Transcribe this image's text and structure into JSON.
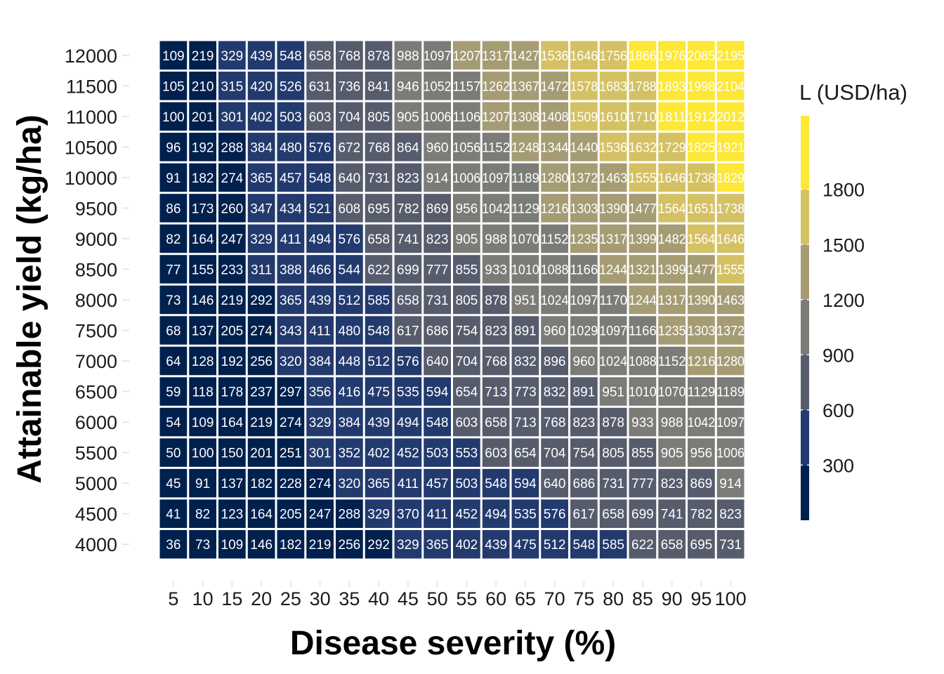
{
  "chart_data": {
    "type": "heatmap",
    "xlabel": "Disease severity (%)",
    "ylabel": "Attainable yield (kg/ha)",
    "x": [
      5,
      10,
      15,
      20,
      25,
      30,
      35,
      40,
      45,
      50,
      55,
      60,
      65,
      70,
      75,
      80,
      85,
      90,
      95,
      100
    ],
    "y": [
      4000,
      4500,
      5000,
      5500,
      6000,
      6500,
      7000,
      7500,
      8000,
      8500,
      9000,
      9500,
      10000,
      10500,
      11000,
      11500,
      12000
    ],
    "x_tick_labels": [
      "5",
      "10",
      "15",
      "20",
      "25",
      "30",
      "35",
      "40",
      "45",
      "50",
      "55",
      "60",
      "65",
      "70",
      "75",
      "80",
      "85",
      "90",
      "95",
      "100"
    ],
    "y_tick_labels": [
      "4000",
      "4500",
      "5000",
      "5500",
      "6000",
      "6500",
      "7000",
      "7500",
      "8000",
      "8500",
      "9000",
      "9500",
      "10000",
      "10500",
      "11000",
      "11500",
      "12000"
    ],
    "cell_labels": [
      [
        "36",
        "73",
        "109",
        "146",
        "182",
        "219",
        "256",
        "292",
        "329",
        "365",
        "402",
        "439",
        "475",
        "512",
        "548",
        "585",
        "622",
        "658",
        "695",
        "731"
      ],
      [
        "41",
        "82",
        "123",
        "164",
        "205",
        "247",
        "288",
        "329",
        "370",
        "411",
        "452",
        "494",
        "535",
        "576",
        "617",
        "658",
        "699",
        "741",
        "782",
        "823"
      ],
      [
        "45",
        "91",
        "137",
        "182",
        "228",
        "274",
        "320",
        "365",
        "411",
        "457",
        "503",
        "548",
        "594",
        "640",
        "686",
        "731",
        "777",
        "823",
        "869",
        "914"
      ],
      [
        "50",
        "100",
        "150",
        "201",
        "251",
        "301",
        "352",
        "402",
        "452",
        "503",
        "553",
        "603",
        "654",
        "704",
        "754",
        "805",
        "855",
        "905",
        "956",
        "1006"
      ],
      [
        "54",
        "109",
        "164",
        "219",
        "274",
        "329",
        "384",
        "439",
        "494",
        "548",
        "603",
        "658",
        "713",
        "768",
        "823",
        "878",
        "933",
        "988",
        "1042",
        "1097"
      ],
      [
        "59",
        "118",
        "178",
        "237",
        "297",
        "356",
        "416",
        "475",
        "535",
        "594",
        "654",
        "713",
        "773",
        "832",
        "891",
        "951",
        "1010",
        "1070",
        "1129",
        "1189"
      ],
      [
        "64",
        "128",
        "192",
        "256",
        "320",
        "384",
        "448",
        "512",
        "576",
        "640",
        "704",
        "768",
        "832",
        "896",
        "960",
        "1024",
        "1088",
        "1152",
        "1216",
        "1280"
      ],
      [
        "68",
        "137",
        "205",
        "274",
        "343",
        "411",
        "480",
        "548",
        "617",
        "686",
        "754",
        "823",
        "891",
        "960",
        "1029",
        "1097",
        "1166",
        "1235",
        "1303",
        "1372"
      ],
      [
        "73",
        "146",
        "219",
        "292",
        "365",
        "439",
        "512",
        "585",
        "658",
        "731",
        "805",
        "878",
        "951",
        "1024",
        "1097",
        "1170",
        "1244",
        "1317",
        "1390",
        "1463"
      ],
      [
        "77",
        "155",
        "233",
        "311",
        "388",
        "466",
        "544",
        "622",
        "699",
        "777",
        "855",
        "933",
        "1010",
        "1088",
        "1166",
        "1244",
        "1321",
        "1399",
        "1477",
        "1555"
      ],
      [
        "82",
        "164",
        "247",
        "329",
        "411",
        "494",
        "576",
        "658",
        "741",
        "823",
        "905",
        "988",
        "1070",
        "1152",
        "1235",
        "1317",
        "1399",
        "1482",
        "1564",
        "1646"
      ],
      [
        "86",
        "173",
        "260",
        "347",
        "434",
        "521",
        "608",
        "695",
        "782",
        "869",
        "956",
        "1042",
        "1129",
        "1216",
        "1303",
        "1390",
        "1477",
        "1564",
        "1651",
        "1738"
      ],
      [
        "91",
        "182",
        "274",
        "365",
        "457",
        "548",
        "640",
        "731",
        "823",
        "914",
        "1006",
        "1097",
        "1189",
        "1280",
        "1372",
        "1463",
        "1555",
        "1646",
        "1738",
        "1829"
      ],
      [
        "96",
        "192",
        "288",
        "384",
        "480",
        "576",
        "672",
        "768",
        "864",
        "960",
        "1056",
        "1152",
        "1248",
        "1344",
        "1440",
        "1536",
        "1632",
        "1729",
        "1825",
        "1921"
      ],
      [
        "100",
        "201",
        "301",
        "402",
        "503",
        "603",
        "704",
        "805",
        "905",
        "1006",
        "1106",
        "1207",
        "1308",
        "1408",
        "1509",
        "1610",
        "1710",
        "1811",
        "1912",
        "2012"
      ],
      [
        "105",
        "210",
        "315",
        "420",
        "526",
        "631",
        "736",
        "841",
        "946",
        "1052",
        "1157",
        "1262",
        "1367",
        "1472",
        "1578",
        "1683",
        "1788",
        "1893",
        "1998",
        "2104"
      ],
      [
        "109",
        "219",
        "329",
        "439",
        "548",
        "658",
        "768",
        "878",
        "988",
        "1097",
        "1207",
        "1317",
        "1427",
        "1536",
        "1646",
        "1756",
        "1866",
        "1976",
        "2085",
        "2195"
      ]
    ],
    "legend": {
      "title": "L (USD/ha)",
      "ticks": [
        300,
        600,
        900,
        1200,
        1500,
        1800
      ],
      "tick_labels": [
        "300",
        "600",
        "900",
        "1200",
        "1500",
        "1800"
      ],
      "bins": [
        0,
        300,
        600,
        900,
        1200,
        1500,
        1800,
        2200
      ],
      "colors": [
        "#00204d",
        "#233a6e",
        "#575c6d",
        "#7b7b78",
        "#a59c74",
        "#d4c164",
        "#fde737"
      ],
      "placement": "right"
    },
    "grid": false
  }
}
